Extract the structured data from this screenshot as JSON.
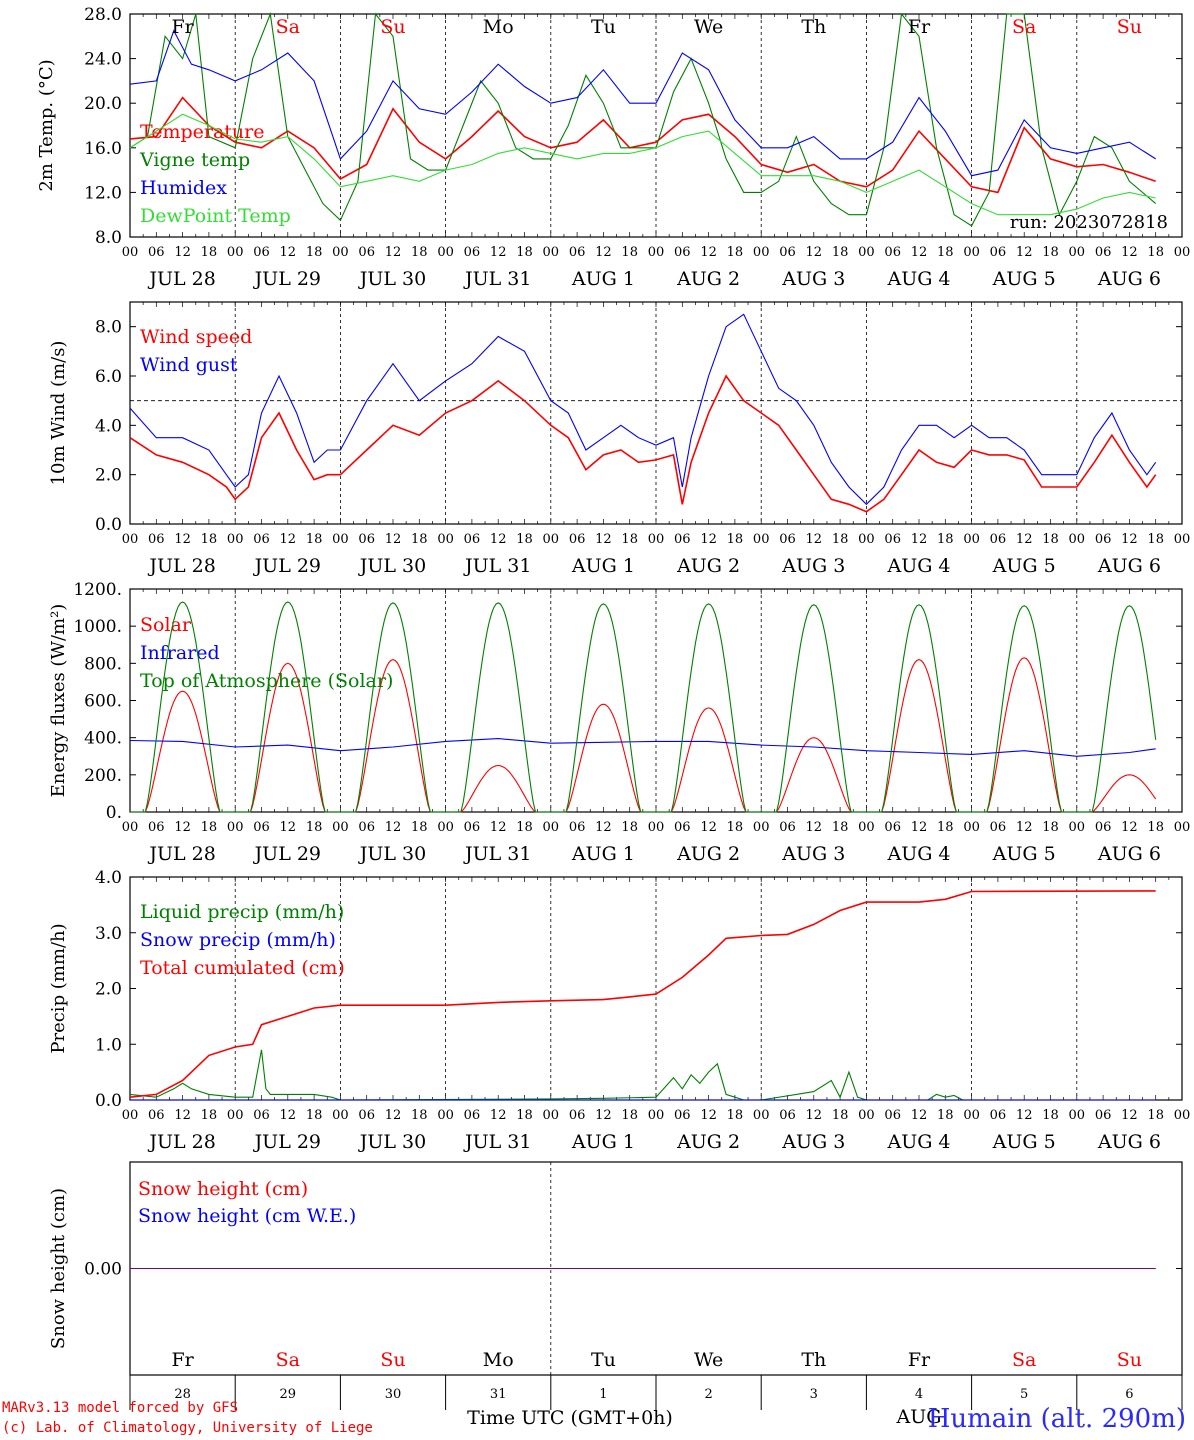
{
  "days": [
    {
      "dow": "Fr",
      "weekend": false,
      "date": "JUL 28",
      "num": "28"
    },
    {
      "dow": "Sa",
      "weekend": true,
      "date": "JUL 29",
      "num": "29"
    },
    {
      "dow": "Su",
      "weekend": true,
      "date": "JUL 30",
      "num": "30"
    },
    {
      "dow": "Mo",
      "weekend": false,
      "date": "JUL 31",
      "num": "31"
    },
    {
      "dow": "Tu",
      "weekend": false,
      "date": "AUG  1",
      "num": "1"
    },
    {
      "dow": "We",
      "weekend": false,
      "date": "AUG  2",
      "num": "2"
    },
    {
      "dow": "Th",
      "weekend": false,
      "date": "AUG  3",
      "num": "3"
    },
    {
      "dow": "Fr",
      "weekend": false,
      "date": "AUG  4",
      "num": "4"
    },
    {
      "dow": "Sa",
      "weekend": true,
      "date": "AUG  5",
      "num": "5"
    },
    {
      "dow": "Su",
      "weekend": true,
      "date": "AUG  6",
      "num": "6"
    }
  ],
  "hour_ticks": [
    "00",
    "06",
    "12",
    "18"
  ],
  "run_label": "run: 2023072818",
  "bottom_axis": {
    "month_label": "AUG",
    "xlabel": "Time UTC (GMT+0h)"
  },
  "credits": [
    "MARv3.13 model forced by GFS",
    "(c) Lab. of Climatology, University of Liege"
  ],
  "station": "Humain (alt. 290m)",
  "colors": {
    "red": "#ff0000",
    "green": "#008000",
    "blue": "#0000ff",
    "lightgreen": "#33dd33",
    "purple": "#800080",
    "weekend": "#ff0000"
  },
  "chart_data": [
    {
      "type": "line",
      "ylabel": "2m Temp. (°C)",
      "ylim": [
        8,
        28
      ],
      "yticks": [
        "8.0",
        "12.0",
        "16.0",
        "20.0",
        "24.0",
        "28.0"
      ],
      "x_unit": "hours since JUL 28 00 UTC",
      "series": [
        {
          "name": "Temperature",
          "color": "#ff0000",
          "x": [
            0,
            6,
            12,
            18,
            24,
            30,
            36,
            42,
            48,
            54,
            60,
            66,
            72,
            78,
            84,
            90,
            96,
            102,
            108,
            114,
            120,
            126,
            132,
            138,
            144,
            150,
            156,
            162,
            168,
            174,
            180,
            186,
            192,
            198,
            204,
            210,
            216,
            222,
            228,
            234
          ],
          "y": [
            16.8,
            17.0,
            20.5,
            18.0,
            16.5,
            16.0,
            17.5,
            16.0,
            13.2,
            14.5,
            19.5,
            16.5,
            15.0,
            17.0,
            19.3,
            17.0,
            16.0,
            16.5,
            18.5,
            16.0,
            16.5,
            18.5,
            19.0,
            17.0,
            14.5,
            13.8,
            14.5,
            13.0,
            12.5,
            14.0,
            17.5,
            15.0,
            12.5,
            12.0,
            17.8,
            15.0,
            14.3,
            14.5,
            13.8,
            13.0
          ]
        },
        {
          "name": "Vigne temp",
          "color": "#008000",
          "x": [
            0,
            4,
            8,
            12,
            15,
            18,
            24,
            28,
            32,
            36,
            40,
            44,
            48,
            52,
            56,
            60,
            64,
            68,
            72,
            76,
            80,
            84,
            88,
            92,
            96,
            100,
            104,
            108,
            112,
            116,
            120,
            124,
            128,
            132,
            136,
            140,
            144,
            148,
            152,
            156,
            160,
            164,
            168,
            172,
            176,
            180,
            184,
            188,
            192,
            196,
            200,
            204,
            208,
            212,
            216,
            220,
            224,
            228,
            234
          ],
          "y": [
            16.0,
            17.0,
            26.0,
            24.0,
            28.0,
            17.0,
            16.0,
            24.0,
            28.0,
            17.0,
            14.0,
            11.0,
            9.5,
            13.0,
            28.0,
            26.0,
            15.0,
            14.0,
            14.0,
            18.0,
            22.0,
            20.0,
            16.0,
            15.0,
            15.0,
            18.0,
            22.5,
            20.0,
            16.0,
            16.0,
            16.0,
            21.0,
            24.0,
            20.0,
            15.0,
            12.0,
            12.0,
            13.0,
            17.0,
            13.0,
            11.0,
            10.0,
            10.0,
            16.0,
            28.0,
            26.0,
            16.0,
            10.0,
            9.0,
            12.0,
            28.0,
            28.0,
            16.0,
            10.0,
            13.0,
            17.0,
            16.0,
            13.0,
            11.0
          ]
        },
        {
          "name": "Humidex",
          "color": "#0000ff",
          "x": [
            0,
            6,
            10,
            14,
            18,
            24,
            30,
            36,
            42,
            48,
            54,
            60,
            66,
            72,
            78,
            84,
            90,
            96,
            102,
            108,
            114,
            120,
            126,
            132,
            138,
            144,
            150,
            156,
            162,
            168,
            174,
            180,
            186,
            192,
            198,
            204,
            210,
            216,
            222,
            228,
            234
          ],
          "y": [
            21.7,
            22.0,
            26.5,
            23.5,
            23.0,
            22.0,
            23.0,
            24.5,
            22.0,
            15.0,
            17.5,
            22.0,
            19.5,
            19.0,
            21.0,
            23.5,
            21.5,
            20.0,
            20.5,
            23.0,
            20.0,
            20.0,
            24.5,
            23.0,
            18.5,
            16.0,
            16.0,
            17.0,
            15.0,
            15.0,
            16.5,
            20.5,
            17.5,
            13.5,
            14.0,
            18.5,
            16.0,
            15.5,
            16.0,
            16.5,
            15.0
          ]
        },
        {
          "name": "DewPoint Temp",
          "color": "#33dd33",
          "x": [
            0,
            6,
            12,
            18,
            24,
            30,
            36,
            42,
            48,
            54,
            60,
            66,
            72,
            78,
            84,
            90,
            96,
            102,
            108,
            114,
            120,
            126,
            132,
            138,
            144,
            150,
            156,
            162,
            168,
            174,
            180,
            186,
            192,
            198,
            204,
            210,
            216,
            222,
            228,
            234
          ],
          "y": [
            16.0,
            17.5,
            19.0,
            18.0,
            16.8,
            16.5,
            17.0,
            15.0,
            12.5,
            13.0,
            13.5,
            13.0,
            14.0,
            14.5,
            15.5,
            16.0,
            15.5,
            15.0,
            15.5,
            15.5,
            16.0,
            17.0,
            17.5,
            15.5,
            13.5,
            13.5,
            13.5,
            13.0,
            12.0,
            13.0,
            14.0,
            12.5,
            11.0,
            10.0,
            10.0,
            10.0,
            10.5,
            11.5,
            12.0,
            11.5
          ]
        }
      ]
    },
    {
      "type": "line",
      "ylabel": "10m Wind (m/s)",
      "ylim": [
        0,
        9
      ],
      "yticks": [
        "0.0",
        "2.0",
        "4.0",
        "6.0",
        "8.0"
      ],
      "refline": 5,
      "series": [
        {
          "name": "Wind speed",
          "color": "#ff0000",
          "x": [
            0,
            6,
            12,
            18,
            22,
            24,
            27,
            30,
            34,
            38,
            42,
            45,
            48,
            54,
            60,
            66,
            72,
            78,
            84,
            90,
            96,
            100,
            104,
            108,
            112,
            116,
            120,
            124,
            126,
            128,
            132,
            136,
            140,
            144,
            148,
            152,
            156,
            160,
            164,
            168,
            172,
            176,
            180,
            184,
            188,
            192,
            196,
            200,
            204,
            208,
            212,
            216,
            220,
            224,
            228,
            232,
            234
          ],
          "y": [
            3.5,
            2.8,
            2.5,
            2.0,
            1.5,
            1.0,
            1.5,
            3.5,
            4.5,
            3.0,
            1.8,
            2.0,
            2.0,
            3.0,
            4.0,
            3.6,
            4.5,
            5.0,
            5.8,
            5.0,
            4.0,
            3.5,
            2.2,
            2.8,
            3.0,
            2.5,
            2.6,
            2.8,
            0.8,
            2.5,
            4.5,
            6.0,
            5.0,
            4.5,
            4.0,
            3.0,
            2.0,
            1.0,
            0.8,
            0.5,
            1.0,
            2.0,
            3.0,
            2.5,
            2.3,
            3.0,
            2.8,
            2.8,
            2.6,
            1.5,
            1.5,
            1.5,
            2.5,
            3.6,
            2.5,
            1.5,
            2.0
          ]
        },
        {
          "name": "Wind gust",
          "color": "#0000ff",
          "x": [
            0,
            6,
            12,
            18,
            22,
            24,
            27,
            30,
            34,
            38,
            42,
            45,
            48,
            54,
            60,
            66,
            72,
            78,
            84,
            90,
            96,
            100,
            104,
            108,
            112,
            116,
            120,
            124,
            126,
            128,
            132,
            136,
            140,
            144,
            148,
            152,
            156,
            160,
            164,
            168,
            172,
            176,
            180,
            184,
            188,
            192,
            196,
            200,
            204,
            208,
            212,
            216,
            220,
            224,
            228,
            232,
            234
          ],
          "y": [
            4.7,
            3.5,
            3.5,
            3.0,
            2.0,
            1.5,
            2.0,
            4.5,
            6.0,
            4.5,
            2.5,
            3.0,
            3.0,
            5.0,
            6.5,
            5.0,
            5.8,
            6.5,
            7.6,
            7.0,
            5.0,
            4.5,
            3.0,
            3.5,
            4.0,
            3.5,
            3.2,
            3.5,
            1.5,
            3.5,
            6.0,
            8.0,
            8.5,
            7.0,
            5.5,
            5.0,
            4.0,
            2.5,
            1.5,
            0.8,
            1.5,
            3.0,
            4.0,
            4.0,
            3.5,
            4.0,
            3.5,
            3.5,
            3.0,
            2.0,
            2.0,
            2.0,
            3.5,
            4.5,
            3.0,
            2.0,
            2.5
          ]
        }
      ]
    },
    {
      "type": "line",
      "ylabel": "Energy fluxes (W/m²)",
      "ylim": [
        0,
        1200
      ],
      "yticks": [
        "0.",
        "200.",
        "400.",
        "600.",
        "800.",
        "1000.",
        "1200."
      ],
      "series": [
        {
          "name": "Solar",
          "color": "#ff0000",
          "kind": "diurnal",
          "peaks": [
            650,
            800,
            820,
            250,
            580,
            560,
            400,
            820,
            830,
            200
          ]
        },
        {
          "name": "Infrared",
          "color": "#0000ff",
          "x": [
            0,
            12,
            24,
            36,
            48,
            60,
            72,
            84,
            96,
            108,
            120,
            132,
            144,
            156,
            168,
            180,
            192,
            204,
            216,
            228,
            234
          ],
          "y": [
            385,
            380,
            350,
            360,
            330,
            350,
            380,
            395,
            370,
            375,
            380,
            380,
            360,
            350,
            330,
            320,
            310,
            330,
            300,
            320,
            340
          ]
        },
        {
          "name": "Top of Atmosphere (Solar)",
          "color": "#008000",
          "kind": "diurnal",
          "peaks": [
            1130,
            1130,
            1125,
            1125,
            1120,
            1120,
            1115,
            1115,
            1110,
            1110
          ]
        }
      ]
    },
    {
      "type": "line",
      "ylabel": "Precip (mm/h)",
      "ylim": [
        0,
        4
      ],
      "yticks": [
        "0.0",
        "1.0",
        "2.0",
        "3.0",
        "4.0"
      ],
      "series": [
        {
          "name": "Liquid precip (mm/h)",
          "color": "#008000",
          "x": [
            0,
            6,
            10,
            12,
            14,
            18,
            24,
            28,
            30,
            31,
            32,
            36,
            42,
            46,
            48,
            96,
            108,
            120,
            124,
            126,
            128,
            130,
            132,
            134,
            136,
            138,
            140,
            144,
            152,
            156,
            160,
            162,
            164,
            166,
            168,
            182,
            184,
            186,
            188,
            190,
            234
          ],
          "y": [
            0.1,
            0.05,
            0.2,
            0.3,
            0.2,
            0.1,
            0.05,
            0.05,
            0.9,
            0.2,
            0.1,
            0.1,
            0.1,
            0.05,
            0,
            0.02,
            0.03,
            0.05,
            0.4,
            0.2,
            0.45,
            0.3,
            0.5,
            0.65,
            0.1,
            0.05,
            0,
            0,
            0.1,
            0.15,
            0.35,
            0.05,
            0.5,
            0.05,
            0,
            0,
            0.1,
            0.05,
            0.08,
            0,
            0
          ]
        },
        {
          "name": "Snow precip (mm/h)",
          "color": "#0000ff",
          "x": [
            0,
            234
          ],
          "y": [
            0,
            0
          ]
        },
        {
          "name": "Total cumulated (cm)",
          "color": "#ff0000",
          "x": [
            0,
            6,
            12,
            18,
            24,
            28,
            30,
            36,
            42,
            48,
            60,
            72,
            84,
            96,
            108,
            114,
            120,
            126,
            132,
            136,
            144,
            150,
            156,
            162,
            168,
            174,
            180,
            186,
            192,
            234
          ],
          "y": [
            0.05,
            0.1,
            0.35,
            0.8,
            0.95,
            1.0,
            1.35,
            1.5,
            1.65,
            1.7,
            1.7,
            1.7,
            1.75,
            1.78,
            1.8,
            1.85,
            1.9,
            2.2,
            2.6,
            2.9,
            2.95,
            2.97,
            3.15,
            3.4,
            3.55,
            3.55,
            3.55,
            3.6,
            3.74,
            3.75
          ]
        }
      ]
    },
    {
      "type": "line",
      "ylabel": "Snow height (cm)",
      "yticks": [
        "0.00"
      ],
      "series": [
        {
          "name": "Snow height (cm)",
          "color": "#ff0000",
          "x": [
            0,
            234
          ],
          "y": [
            0,
            0
          ]
        },
        {
          "name": "Snow height (cm W.E.)",
          "color": "#0000ff",
          "x": [
            0,
            234
          ],
          "y": [
            0,
            0
          ]
        }
      ]
    }
  ]
}
